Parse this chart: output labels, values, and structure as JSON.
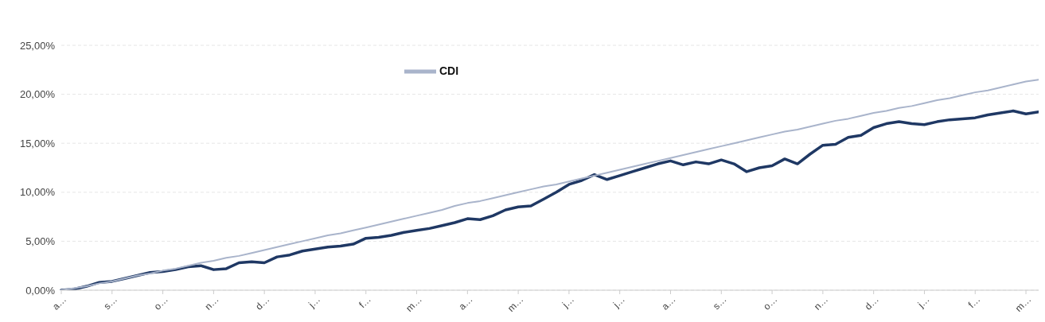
{
  "chart_data": {
    "type": "line",
    "categories": [
      "a…",
      null,
      null,
      null,
      "s…",
      null,
      null,
      null,
      "o…",
      null,
      null,
      null,
      "n…",
      null,
      null,
      null,
      "d…",
      null,
      null,
      null,
      "j…",
      null,
      null,
      null,
      "f…",
      null,
      null,
      null,
      "m…",
      null,
      null,
      null,
      "a…",
      null,
      null,
      null,
      "m…",
      null,
      null,
      null,
      "j…",
      null,
      null,
      null,
      "j…",
      null,
      null,
      null,
      "a…",
      null,
      null,
      null,
      "s…",
      null,
      null,
      null,
      "o…",
      null,
      null,
      null,
      "n…",
      null,
      null,
      null,
      "d…",
      null,
      null,
      null,
      "j…",
      null,
      null,
      null,
      "f…",
      null,
      null,
      null,
      "m…",
      null
    ],
    "series": [
      {
        "color": "#1f3864",
        "values": [
          0.0,
          0.1,
          0.4,
          0.8,
          0.9,
          1.2,
          1.5,
          1.8,
          1.9,
          2.1,
          2.4,
          2.5,
          2.1,
          2.2,
          2.8,
          2.9,
          2.8,
          3.4,
          3.6,
          4.0,
          4.2,
          4.4,
          4.5,
          4.7,
          5.3,
          5.4,
          5.6,
          5.9,
          6.1,
          6.3,
          6.6,
          6.9,
          7.3,
          7.2,
          7.6,
          8.2,
          8.5,
          8.6,
          9.3,
          10.0,
          10.8,
          11.2,
          11.8,
          11.3,
          11.7,
          12.1,
          12.5,
          12.9,
          13.2,
          12.8,
          13.1,
          12.9,
          13.3,
          12.9,
          12.1,
          12.5,
          12.7,
          13.4,
          12.9,
          13.9,
          14.8,
          14.9,
          15.6,
          15.8,
          16.6,
          17.0,
          17.2,
          17.0,
          16.9,
          17.2,
          17.4,
          17.5,
          17.6,
          17.9,
          18.1,
          18.3,
          18.0,
          18.2
        ]
      },
      {
        "name": "CDI",
        "color": "#a9b4cb",
        "values": [
          0.0,
          0.2,
          0.4,
          0.7,
          0.9,
          1.2,
          1.5,
          1.7,
          2.0,
          2.2,
          2.5,
          2.8,
          3.0,
          3.3,
          3.5,
          3.8,
          4.1,
          4.4,
          4.7,
          5.0,
          5.3,
          5.6,
          5.8,
          6.1,
          6.4,
          6.7,
          7.0,
          7.3,
          7.6,
          7.9,
          8.2,
          8.6,
          8.9,
          9.1,
          9.4,
          9.7,
          10.0,
          10.3,
          10.6,
          10.8,
          11.1,
          11.4,
          11.7,
          12.0,
          12.3,
          12.6,
          12.9,
          13.2,
          13.5,
          13.8,
          14.1,
          14.4,
          14.7,
          15.0,
          15.3,
          15.6,
          15.9,
          16.2,
          16.4,
          16.7,
          17.0,
          17.3,
          17.5,
          17.8,
          18.1,
          18.3,
          18.6,
          18.8,
          19.1,
          19.4,
          19.6,
          19.9,
          20.2,
          20.4,
          20.7,
          21.0,
          21.3,
          21.5
        ]
      }
    ],
    "ylim": [
      0,
      25
    ],
    "yticks": [
      {
        "value": 0,
        "label": "0,00%"
      },
      {
        "value": 5,
        "label": "5,00%"
      },
      {
        "value": 10,
        "label": "10,00%"
      },
      {
        "value": 15,
        "label": "15,00%"
      },
      {
        "value": 20,
        "label": "20,00%"
      },
      {
        "value": 25,
        "label": "25,00%"
      }
    ],
    "grid": "y",
    "legend": "top left",
    "marker": "none",
    "line_style": "solid"
  }
}
